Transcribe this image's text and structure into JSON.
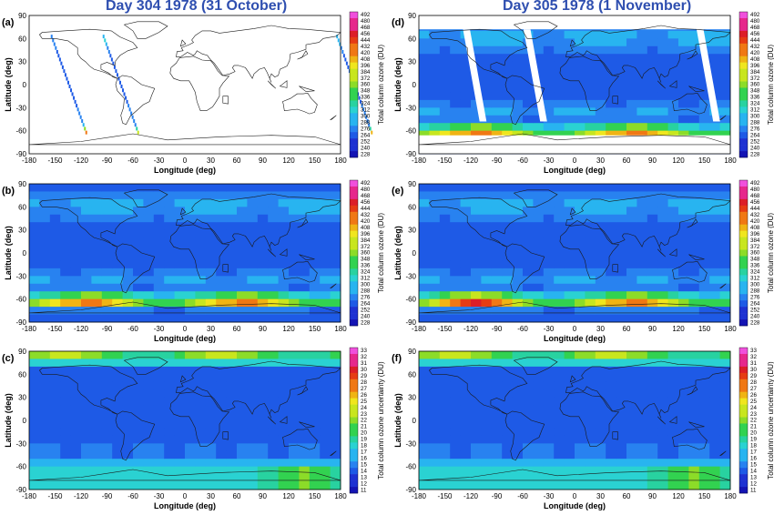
{
  "titles": {
    "left": "Day 304 1978 (31 October)",
    "right": "Day 305 1978 (1 November)"
  },
  "axes": {
    "xlabel": "Longitude (deg)",
    "ylabel": "Latitude (deg)",
    "xticks": [
      "-180",
      "-150",
      "-120",
      "-90",
      "-60",
      "-30",
      "0",
      "30",
      "60",
      "90",
      "120",
      "150",
      "180"
    ],
    "yticks": [
      "90",
      "60",
      "30",
      "0",
      "-30",
      "-60",
      "-90"
    ]
  },
  "colorbars": {
    "ozone": {
      "label": "Total column ozone (DU)",
      "ticks": [
        "492",
        "480",
        "468",
        "456",
        "444",
        "432",
        "420",
        "408",
        "396",
        "384",
        "372",
        "360",
        "348",
        "336",
        "324",
        "312",
        "300",
        "288",
        "276",
        "264",
        "252",
        "240",
        "228"
      ]
    },
    "uncertainty": {
      "label": "Total column ozone uncertainty (DU)",
      "ticks": [
        "33",
        "32",
        "31",
        "30",
        "29",
        "28",
        "27",
        "26",
        "25",
        "24",
        "23",
        "22",
        "21",
        "20",
        "19",
        "18",
        "17",
        "16",
        "15",
        "14",
        "13",
        "12",
        "11"
      ]
    }
  },
  "panels": [
    {
      "id": "a",
      "label": "(a)",
      "type": "swaths",
      "colorbar": "ozone"
    },
    {
      "id": "d",
      "label": "(d)",
      "type": "ozone-gaps",
      "colorbar": "ozone"
    },
    {
      "id": "b",
      "label": "(b)",
      "type": "ozone",
      "colorbar": "ozone"
    },
    {
      "id": "e",
      "label": "(e)",
      "type": "ozone",
      "colorbar": "ozone"
    },
    {
      "id": "c",
      "label": "(c)",
      "type": "uncertainty",
      "colorbar": "uncertainty"
    },
    {
      "id": "f",
      "label": "(f)",
      "type": "uncertainty",
      "colorbar": "uncertainty"
    }
  ],
  "colors": {
    "scale": [
      "#1414b4",
      "#1e32d2",
      "#1e5ae6",
      "#2882f0",
      "#28b4f0",
      "#2ad2d2",
      "#28d2a0",
      "#32d250",
      "#8cdc28",
      "#c8e61e",
      "#f0e61e",
      "#f0b414",
      "#f07814",
      "#e63c14",
      "#dc1e28",
      "#e6288c",
      "#f050dc"
    ],
    "title": "#2f4fb0"
  }
}
